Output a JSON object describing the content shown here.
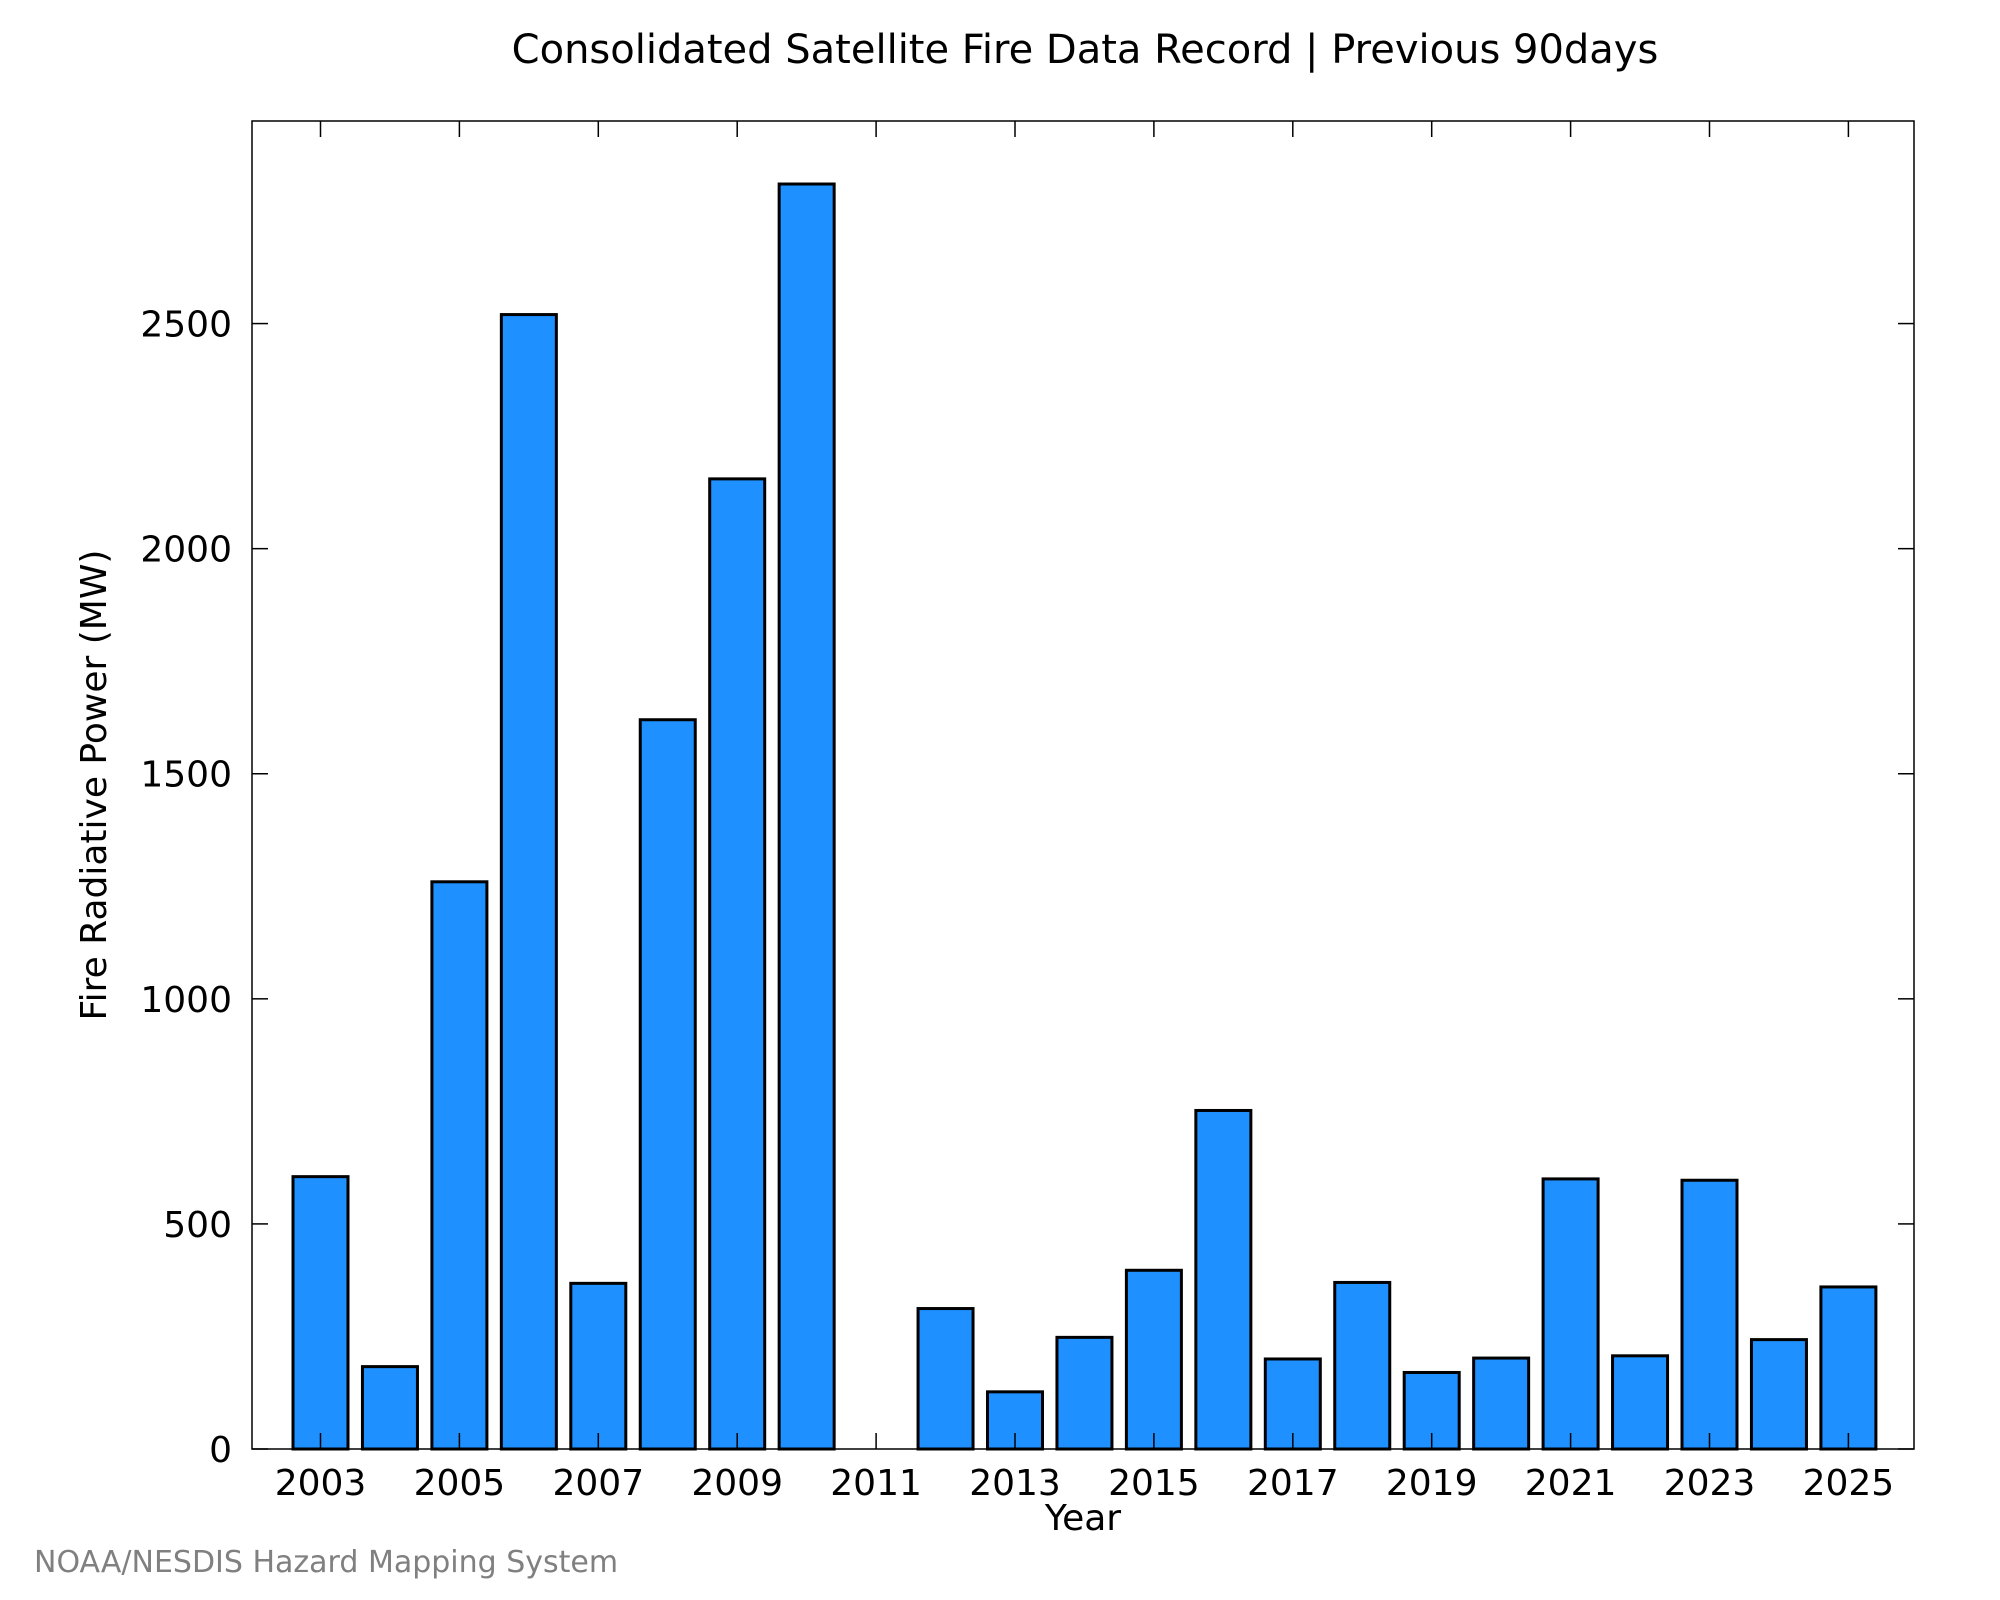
{
  "chart_data": {
    "type": "bar",
    "title": "Consolidated Satellite Fire Data Record | Previous 90days",
    "xlabel": "Year",
    "ylabel": "Fire Radiative Power (MW)",
    "categories": [
      "2003",
      "2004",
      "2005",
      "2006",
      "2007",
      "2008",
      "2009",
      "2010",
      "2011",
      "2012",
      "2013",
      "2014",
      "2015",
      "2016",
      "2017",
      "2018",
      "2019",
      "2020",
      "2021",
      "2022",
      "2023",
      "2024",
      "2025"
    ],
    "values": [
      605,
      183,
      1260,
      2520,
      368,
      1620,
      2155,
      2810,
      0,
      312,
      127,
      248,
      397,
      752,
      200,
      370,
      170,
      202,
      600,
      207,
      597,
      243,
      360
    ],
    "x_tick_labels": [
      "2003",
      "2005",
      "2007",
      "2009",
      "2011",
      "2013",
      "2015",
      "2017",
      "2019",
      "2021",
      "2023",
      "2025"
    ],
    "y_ticks": [
      0,
      500,
      1000,
      1500,
      2000,
      2500
    ],
    "ylim": [
      0,
      2950
    ],
    "grid": false,
    "bar_color": "#1e90ff",
    "bar_edge_color": "#000000"
  },
  "footer": {
    "source": "NOAA/NESDIS Hazard Mapping System"
  }
}
